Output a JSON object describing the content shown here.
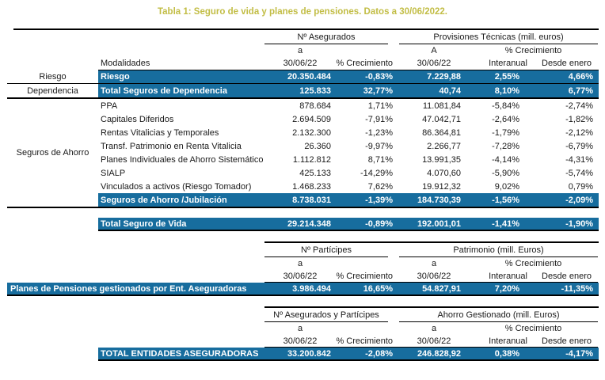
{
  "page_title": "Tabla 1: Seguro de vida y planes de pensiones. Datos a 30/06/2022.",
  "colors": {
    "highlight_blue": "#176d9e",
    "title_yellow": "#c2bd45"
  },
  "table_seguro_vida": {
    "group_headers": {
      "asegurados": "Nº Asegurados",
      "provisiones": "Provisiones Técnicas (mill. euros)"
    },
    "sub_headers": {
      "a_asegurados": "a",
      "a_provisiones": "A",
      "crecimiento": "% Crecimiento"
    },
    "col_headers": {
      "modalidades": "Modalidades",
      "fecha1": "30/06/22",
      "crecimiento": "% Crecimiento",
      "fecha2": "30/06/22",
      "interanual": "Interanual",
      "desde_enero": "Desde enero"
    },
    "categories": {
      "riesgo": "Riesgo",
      "dependencia": "Dependencia",
      "ahorro": "Seguros de Ahorro"
    },
    "rows": [
      {
        "label": "Riesgo",
        "values": [
          "20.350.484",
          "-0,83%",
          "7.229,88",
          "2,55%",
          "4,66%"
        ]
      },
      {
        "label": "Total Seguros de Dependencia",
        "values": [
          "125.833",
          "32,77%",
          "40,74",
          "8,10%",
          "6,77%"
        ]
      },
      {
        "label": "PPA",
        "values": [
          "878.684",
          "1,71%",
          "11.081,84",
          "-5,84%",
          "-2,74%"
        ]
      },
      {
        "label": "Capitales Diferidos",
        "values": [
          "2.694.509",
          "-7,91%",
          "47.042,71",
          "-2,64%",
          "-1,82%"
        ]
      },
      {
        "label": "Rentas Vitalicias y Temporales",
        "values": [
          "2.132.300",
          "-1,23%",
          "86.364,81",
          "-1,79%",
          "-2,12%"
        ]
      },
      {
        "label": "Transf. Patrimonio en Renta Vitalicia",
        "values": [
          "26.360",
          "-9,97%",
          "2.266,77",
          "-7,28%",
          "-6,79%"
        ]
      },
      {
        "label": "Planes Individuales de Ahorro Sistemático",
        "values": [
          "1.112.812",
          "8,71%",
          "13.991,35",
          "-4,14%",
          "-4,31%"
        ]
      },
      {
        "label": "SIALP",
        "values": [
          "425.133",
          "-14,29%",
          "4.070,60",
          "-5,90%",
          "-5,74%"
        ]
      },
      {
        "label": "Vinculados a activos (Riesgo Tomador)",
        "values": [
          "1.468.233",
          "7,62%",
          "19.912,32",
          "9,02%",
          "0,79%"
        ]
      },
      {
        "label": "Seguros de Ahorro /Jubilación",
        "values": [
          "8.738.031",
          "-1,39%",
          "184.730,39",
          "-1,56%",
          "-2,09%"
        ]
      }
    ],
    "total_row": {
      "label": "Total Seguro de Vida",
      "values": [
        "29.214.348",
        "-0,89%",
        "192.001,01",
        "-1,41%",
        "-1,90%"
      ]
    }
  },
  "table_planes_pensiones": {
    "group_headers": {
      "participes": "Nº Partícipes",
      "patrimonio": "Patrimonio (mill. Euros)"
    },
    "sub_headers": {
      "a_left": "a",
      "a_right": "a",
      "crecimiento": "% Crecimiento"
    },
    "col_headers": {
      "fecha1": "30/06/22",
      "crecimiento": "% Crecimiento",
      "fecha2": "30/06/22",
      "interanual": "Interanual",
      "desde_enero": "Desde enero"
    },
    "row": {
      "label": "Planes de Pensiones gestionados por Ent. Aseguradoras",
      "values": [
        "3.986.494",
        "16,65%",
        "54.827,91",
        "7,20%",
        "-11,35%"
      ]
    }
  },
  "table_total_entidades": {
    "group_headers": {
      "asegurados_participes": "Nº Asegurados y Partícipes",
      "ahorro_gestionado": "Ahorro Gestionado (mill. Euros)"
    },
    "sub_headers": {
      "a_left": "a",
      "a_right": "a",
      "crecimiento": "% Crecimiento"
    },
    "col_headers": {
      "fecha1": "30/06/22",
      "crecimiento": "% Crecimiento",
      "fecha2": "30/06/22",
      "interanual": "Interanual",
      "desde_enero": "Desde enero"
    },
    "row": {
      "label": "TOTAL ENTIDADES ASEGURADORAS",
      "values": [
        "33.200.842",
        "-2,08%",
        "246.828,92",
        "0,38%",
        "-4,17%"
      ]
    }
  }
}
